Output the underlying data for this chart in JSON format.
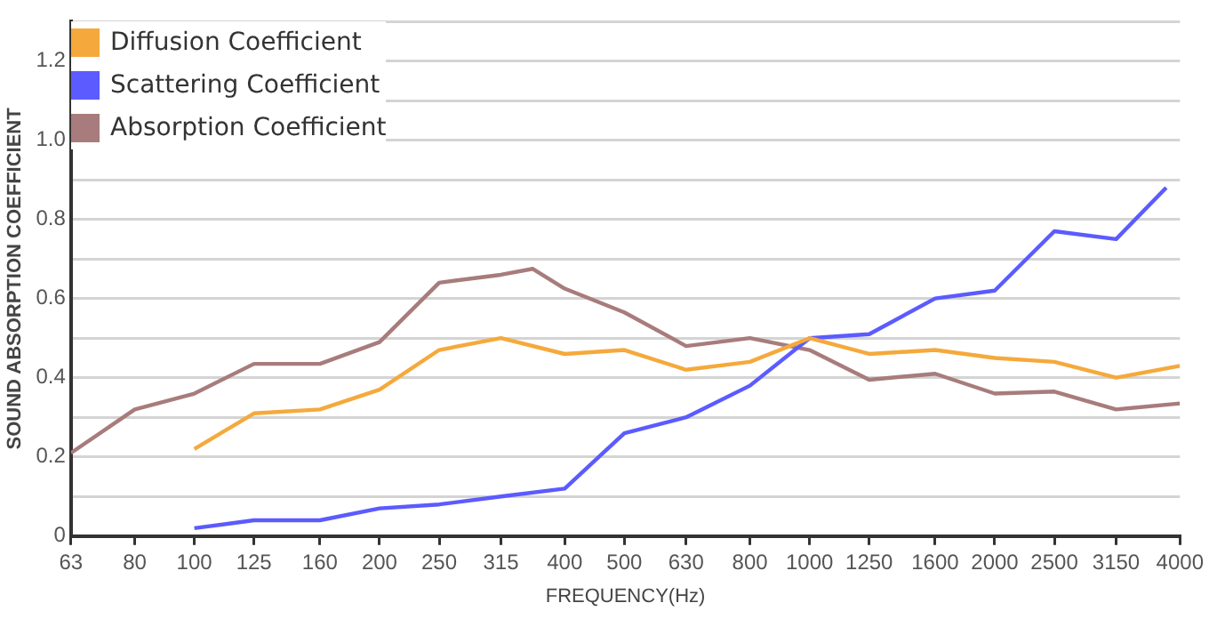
{
  "chart_data": {
    "type": "line",
    "xlabel": "FREQUENCY(Hz)",
    "ylabel": "SOUND ABSORPTION COEFFICIENT",
    "log": "x",
    "xlim": [
      63,
      4000
    ],
    "xticks": [
      63,
      80,
      100,
      125,
      160,
      200,
      250,
      315,
      400,
      500,
      630,
      800,
      1000,
      1250,
      1600,
      2000,
      2500,
      3150,
      4000
    ],
    "ylim": [
      0,
      1.3
    ],
    "yticks": [
      0,
      {
        "value": 0.1,
        "label": null
      },
      0.2,
      {
        "value": 0.3,
        "label": null
      },
      0.4,
      {
        "value": 0.5,
        "label": null
      },
      0.6,
      {
        "value": 0.7,
        "label": null
      },
      0.8,
      {
        "value": 0.9,
        "label": null
      },
      {
        "value": 1.0,
        "label": "1.0"
      },
      {
        "value": 1.1,
        "label": null
      },
      1.2,
      {
        "value": 1.3,
        "label": null
      }
    ],
    "grid": "y",
    "legend": "top left",
    "marker": "none",
    "line_style": "solid",
    "series": [
      {
        "name": "Diffusion  Coefficient",
        "color": "#f5a93c",
        "x": [
          100,
          125,
          160,
          200,
          250,
          315,
          400,
          500,
          630,
          800,
          1000,
          1250,
          1600,
          2000,
          2500,
          3150,
          4000
        ],
        "values": [
          0.22,
          0.31,
          0.32,
          0.37,
          0.47,
          0.5,
          0.46,
          0.47,
          0.42,
          0.44,
          0.5,
          0.46,
          0.47,
          0.45,
          0.44,
          0.4,
          0.43
        ]
      },
      {
        "name": "Scattering  Coefficient",
        "color": "#5b5bff",
        "x": [
          100,
          125,
          160,
          200,
          250,
          315,
          400,
          500,
          630,
          800,
          1000,
          1250,
          1600,
          2000,
          2500,
          3150,
          3800
        ],
        "values": [
          0.02,
          0.04,
          0.04,
          0.07,
          0.08,
          0.1,
          0.12,
          0.26,
          0.3,
          0.38,
          0.5,
          0.51,
          0.6,
          0.62,
          0.77,
          0.75,
          0.88
        ]
      },
      {
        "name": "Absorption  Coefficient",
        "color": "#a87c7c",
        "x": [
          63,
          80,
          100,
          125,
          160,
          200,
          250,
          315,
          355,
          400,
          500,
          630,
          800,
          1000,
          1250,
          1600,
          2000,
          2500,
          3150,
          4000
        ],
        "values": [
          0.21,
          0.32,
          0.36,
          0.435,
          0.435,
          0.49,
          0.64,
          0.66,
          0.675,
          0.625,
          0.565,
          0.48,
          0.5,
          0.47,
          0.395,
          0.41,
          0.36,
          0.365,
          0.32,
          0.335
        ]
      }
    ]
  }
}
